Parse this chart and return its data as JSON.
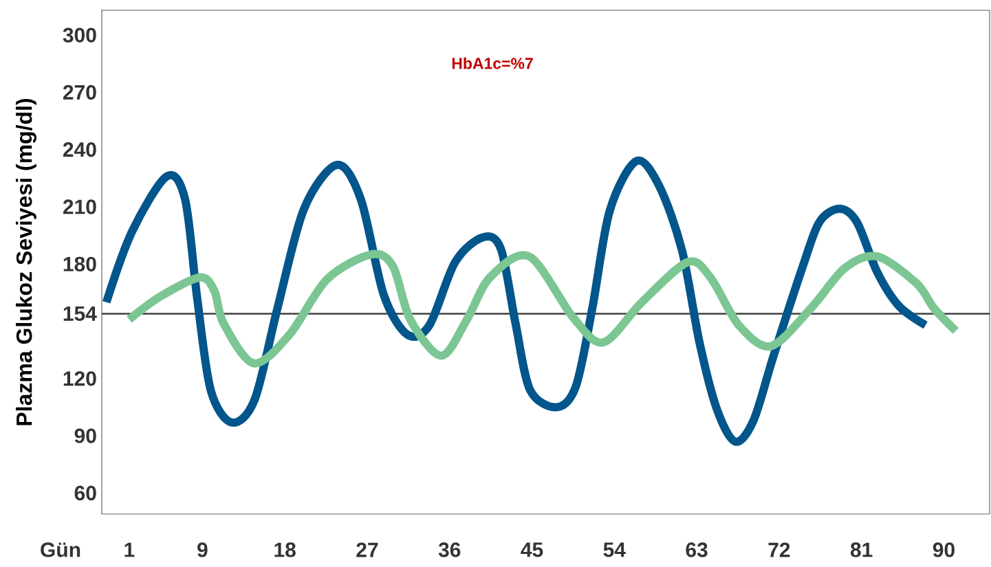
{
  "chart_data": {
    "type": "line",
    "ylabel": "Plazma Glukoz Seviyesi (mg/dl)",
    "xlabel": "Gün",
    "annotations": [
      "HbA1c=%7"
    ],
    "xlim": [
      -2,
      95
    ],
    "xticks": [
      1,
      9,
      18,
      27,
      36,
      45,
      54,
      63,
      72,
      81,
      90
    ],
    "ylim": [
      49,
      313
    ],
    "yticks": [
      60,
      90,
      120,
      154,
      180,
      210,
      240,
      270,
      300
    ],
    "ref_lines": [
      {
        "axis": "y",
        "value": 154,
        "color": "#404040"
      }
    ],
    "grid": false,
    "marker": "none",
    "line_style": "solid",
    "series": [
      {
        "color": "#02568c",
        "x": [
          -1.5,
          1.3,
          5.1,
          7.1,
          8.4,
          9.9,
          12.2,
          14.7,
          17.2,
          20.1,
          23.7,
          26.3,
          28.8,
          31.4,
          33.8,
          36.6,
          39.6,
          41.6,
          43.2,
          44.8,
          47.7,
          49.8,
          51.6,
          53.5,
          56.4,
          58.9,
          61.4,
          63.3,
          65.2,
          67.2,
          69.2,
          71.4,
          74.6,
          76.4,
          78.6,
          80.5,
          82.7,
          85.1,
          88.0
        ],
        "values": [
          160,
          197,
          226,
          214,
          163,
          114,
          97,
          109,
          157,
          209,
          232,
          214,
          164,
          143,
          148,
          181,
          194,
          188,
          149,
          114,
          105,
          116,
          157,
          208,
          234,
          221,
          187,
          139,
          104,
          87,
          98,
          132,
          179,
          202,
          209,
          202,
          176,
          158,
          148
        ]
      },
      {
        "color": "#7bc693",
        "x": [
          1.0,
          4.4,
          8.7,
          10.3,
          11.3,
          14.6,
          18.5,
          22.6,
          27.4,
          29.8,
          31.7,
          35.1,
          37.9,
          40.4,
          44.7,
          49.5,
          52.8,
          57.0,
          62.0,
          64.5,
          67.6,
          71.1,
          75.5,
          79.2,
          82.7,
          87.0,
          88.9,
          91.3
        ],
        "values": [
          151,
          163,
          173,
          166,
          149,
          128,
          143,
          172,
          185,
          179,
          151,
          132,
          151,
          173,
          184,
          152,
          139,
          160,
          181,
          173,
          148,
          137,
          157,
          178,
          184,
          170,
          157,
          145
        ]
      }
    ]
  }
}
